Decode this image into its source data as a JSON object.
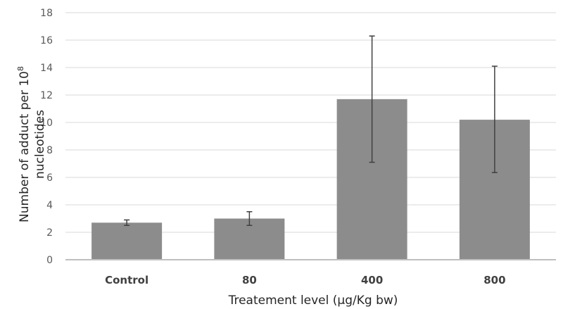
{
  "chart_data": {
    "type": "bar",
    "categories": [
      "Control",
      "80",
      "400",
      "800"
    ],
    "values": [
      2.7,
      3.0,
      11.7,
      10.2
    ],
    "error_bars": {
      "upper": [
        2.9,
        3.5,
        16.3,
        14.1
      ],
      "lower": [
        2.5,
        2.5,
        7.1,
        6.35
      ]
    },
    "xlabel": "Treatement level (µg/Kg bw)",
    "ylabel": {
      "line1": "Number of adduct per 10",
      "superscript": "8",
      "line2": "nucleotides"
    },
    "ylim": [
      0,
      18
    ],
    "yticks": [
      0,
      2,
      4,
      6,
      8,
      10,
      12,
      14,
      16,
      18
    ],
    "grid": true,
    "legend": "none",
    "colors": {
      "bar": "#8c8c8c",
      "error_bar": "#404040",
      "grid": "#d9d9d9"
    }
  }
}
